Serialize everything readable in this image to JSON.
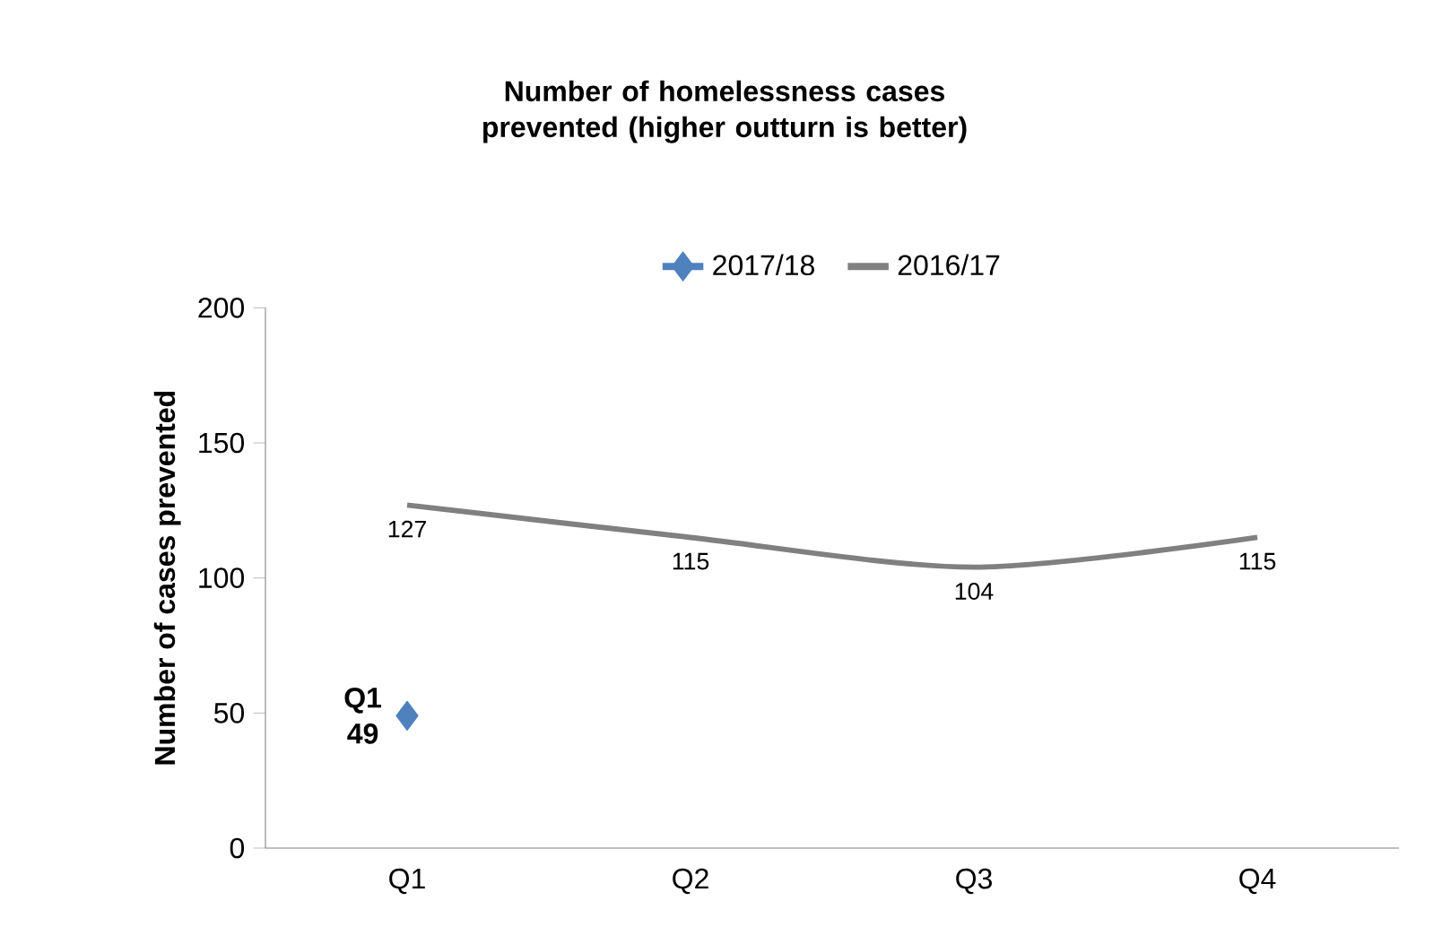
{
  "chart_data": {
    "type": "line",
    "title": "Number of homelessness cases prevented (higher outturn is better)",
    "ylabel": "Number of cases prevented",
    "categories": [
      "Q1",
      "Q2",
      "Q3",
      "Q4"
    ],
    "series": [
      {
        "name": "2017/18",
        "color": "#4f81bd",
        "marker": "diamond",
        "values": [
          49,
          null,
          null,
          null
        ],
        "value_labels": [
          "Q1 49",
          null,
          null,
          null
        ]
      },
      {
        "name": "2016/17",
        "color": "#808080",
        "marker": "none",
        "values": [
          127,
          115,
          104,
          115
        ],
        "value_labels": [
          "127",
          "115",
          "104",
          "115"
        ]
      }
    ],
    "ylim": [
      0,
      200
    ],
    "yticks": [
      0,
      50,
      100,
      150,
      200
    ],
    "grid": false,
    "legend": "top",
    "line_style": "solid"
  }
}
